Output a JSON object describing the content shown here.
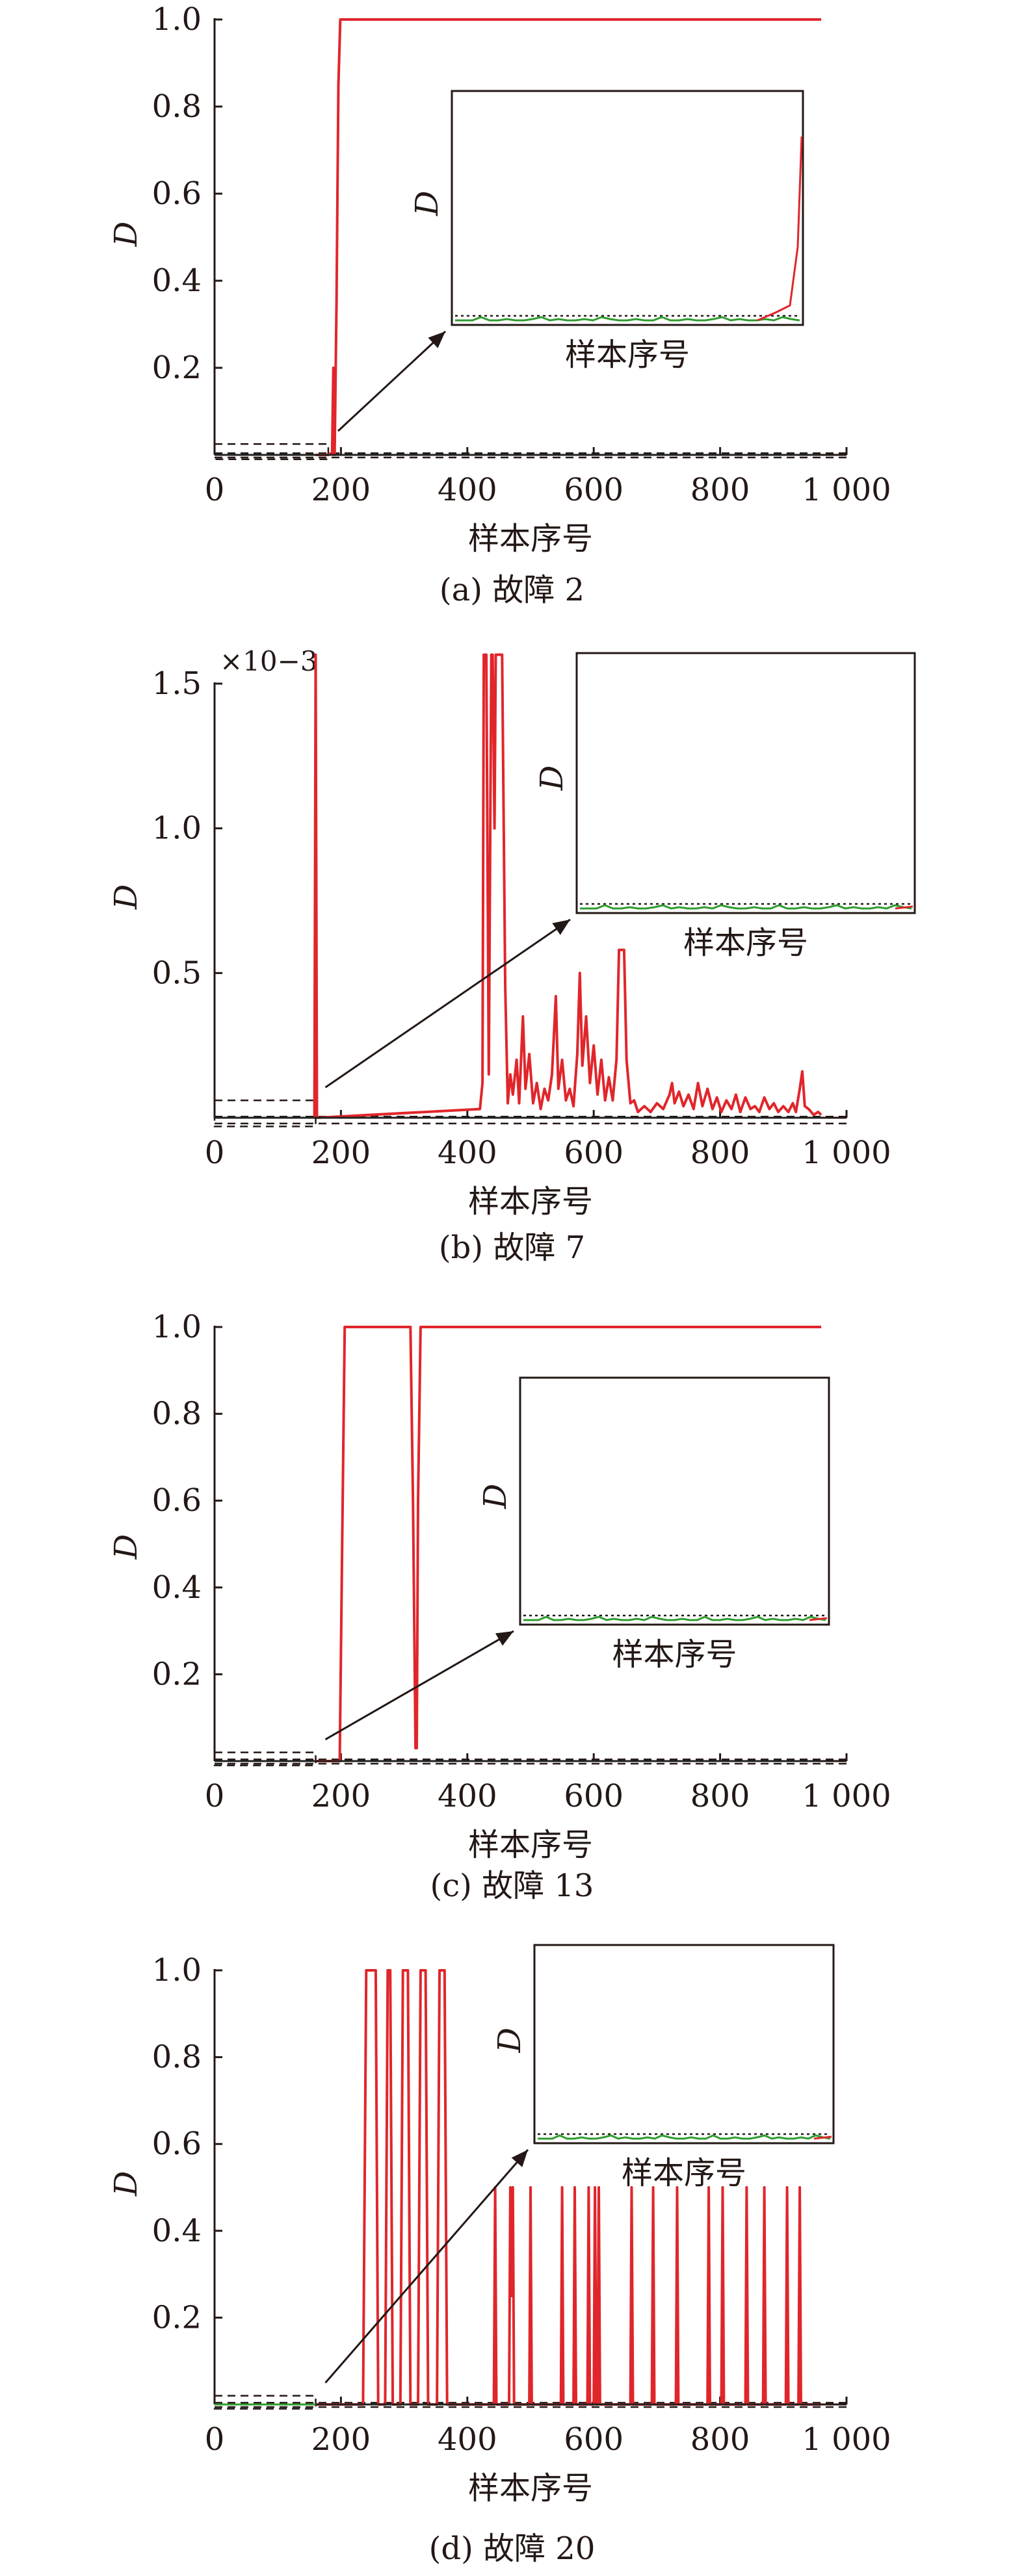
{
  "chart_data": [
    {
      "type": "line",
      "caption": "(a) 故障 2",
      "xlabel": "样本序号",
      "ylabel": "D",
      "xticks": [
        "0",
        "200",
        "400",
        "600",
        "800",
        "1 000"
      ],
      "yticks": [
        "0.2",
        "0.4",
        "0.6",
        "0.8",
        "1.0"
      ],
      "xlim": [
        0,
        1000
      ],
      "ylim": [
        0,
        1.0
      ],
      "exponent_label": "",
      "zoom_box": {
        "x": [
          0,
          180
        ],
        "y": [
          -0.01,
          0.025
        ]
      },
      "inset": {
        "xlabel": "样本序号",
        "ylabel": "D"
      },
      "series": [
        {
          "color": "#e0262b",
          "points": [
            [
              160,
              0
            ],
            [
              170,
              0
            ],
            [
              180,
              0
            ],
            [
              186,
              0.005
            ],
            [
              188,
              0.2
            ],
            [
              189,
              0.02
            ],
            [
              190,
              0
            ],
            [
              193,
              0.35
            ],
            [
              196,
              0.85
            ],
            [
              199,
              1.0
            ],
            [
              260,
              1.0
            ],
            [
              400,
              1.0
            ],
            [
              600,
              1.0
            ],
            [
              800,
              1.0
            ],
            [
              960,
              1.0
            ]
          ]
        },
        {
          "color": "#222222",
          "points": [
            [
              0,
              0
            ],
            [
              160,
              0
            ],
            [
              200,
              0
            ],
            [
              400,
              0
            ],
            [
              600,
              0
            ],
            [
              800,
              0
            ],
            [
              960,
              0
            ]
          ]
        }
      ],
      "thresholds": [
        {
          "value": 0.004
        },
        {
          "value": -0.006
        }
      ]
    },
    {
      "type": "line",
      "caption": "(b) 故障 7",
      "xlabel": "样本序号",
      "ylabel": "D",
      "xticks": [
        "0",
        "200",
        "400",
        "600",
        "800",
        "1 000"
      ],
      "yticks": [
        "0.5",
        "1.0",
        "1.5"
      ],
      "xlim": [
        0,
        1000
      ],
      "ylim": [
        0,
        1.5
      ],
      "exponent_label": "×10−3",
      "zoom_box": {
        "x": [
          0,
          160
        ],
        "y": [
          -0.03,
          0.06
        ]
      },
      "inset": {
        "xlabel": "样本序号",
        "ylabel": "D"
      },
      "series": [
        {
          "color": "#e0262b",
          "points": [
            [
              158,
              0
            ],
            [
              160,
              1.6
            ],
            [
              162,
              0
            ],
            [
              420,
              0.03
            ],
            [
              424,
              0.12
            ],
            [
              426,
              1.6
            ],
            [
              430,
              1.6
            ],
            [
              434,
              0.15
            ],
            [
              438,
              1.6
            ],
            [
              440,
              1.6
            ],
            [
              443,
              1.0
            ],
            [
              445,
              1.6
            ],
            [
              450,
              1.6
            ],
            [
              455,
              1.6
            ],
            [
              460,
              0.45
            ],
            [
              464,
              0.05
            ],
            [
              468,
              0.15
            ],
            [
              472,
              0.08
            ],
            [
              478,
              0.2
            ],
            [
              482,
              0.05
            ],
            [
              488,
              0.35
            ],
            [
              492,
              0.1
            ],
            [
              498,
              0.22
            ],
            [
              504,
              0.05
            ],
            [
              510,
              0.12
            ],
            [
              516,
              0.03
            ],
            [
              522,
              0.1
            ],
            [
              528,
              0.06
            ],
            [
              534,
              0.15
            ],
            [
              540,
              0.42
            ],
            [
              544,
              0.1
            ],
            [
              550,
              0.2
            ],
            [
              556,
              0.06
            ],
            [
              562,
              0.1
            ],
            [
              568,
              0.04
            ],
            [
              574,
              0.22
            ],
            [
              578,
              0.5
            ],
            [
              582,
              0.18
            ],
            [
              588,
              0.35
            ],
            [
              594,
              0.12
            ],
            [
              600,
              0.25
            ],
            [
              606,
              0.08
            ],
            [
              612,
              0.2
            ],
            [
              618,
              0.06
            ],
            [
              624,
              0.14
            ],
            [
              630,
              0.06
            ],
            [
              636,
              0.2
            ],
            [
              640,
              0.58
            ],
            [
              644,
              0.58
            ],
            [
              648,
              0.58
            ],
            [
              652,
              0.2
            ],
            [
              658,
              0.05
            ],
            [
              664,
              0.06
            ],
            [
              670,
              0.02
            ],
            [
              680,
              0.04
            ],
            [
              690,
              0.02
            ],
            [
              700,
              0.05
            ],
            [
              710,
              0.03
            ],
            [
              720,
              0.08
            ],
            [
              724,
              0.12
            ],
            [
              728,
              0.05
            ],
            [
              735,
              0.09
            ],
            [
              742,
              0.04
            ],
            [
              750,
              0.08
            ],
            [
              758,
              0.03
            ],
            [
              765,
              0.12
            ],
            [
              772,
              0.04
            ],
            [
              780,
              0.1
            ],
            [
              788,
              0.03
            ],
            [
              795,
              0.07
            ],
            [
              802,
              0.02
            ],
            [
              810,
              0.06
            ],
            [
              818,
              0.03
            ],
            [
              825,
              0.08
            ],
            [
              832,
              0.02
            ],
            [
              840,
              0.07
            ],
            [
              848,
              0.03
            ],
            [
              855,
              0.04
            ],
            [
              862,
              0.02
            ],
            [
              870,
              0.07
            ],
            [
              878,
              0.03
            ],
            [
              885,
              0.05
            ],
            [
              892,
              0.02
            ],
            [
              900,
              0.04
            ],
            [
              908,
              0.02
            ],
            [
              915,
              0.05
            ],
            [
              920,
              0.02
            ],
            [
              926,
              0.1
            ],
            [
              930,
              0.16
            ],
            [
              934,
              0.04
            ],
            [
              940,
              0.03
            ],
            [
              948,
              0.01
            ],
            [
              955,
              0.02
            ],
            [
              960,
              0.01
            ]
          ]
        },
        {
          "color": "#222222",
          "points": [
            [
              0,
              0
            ],
            [
              200,
              0
            ],
            [
              400,
              0
            ],
            [
              600,
              0
            ],
            [
              800,
              0
            ],
            [
              960,
              0
            ]
          ]
        }
      ],
      "thresholds": [
        {
          "value": 0.004
        },
        {
          "value": -0.02
        }
      ]
    },
    {
      "type": "line",
      "caption": "(c) 故障 13",
      "xlabel": "样本序号",
      "ylabel": "D",
      "xticks": [
        "0",
        "200",
        "400",
        "600",
        "800",
        "1 000"
      ],
      "yticks": [
        "0.2",
        "0.4",
        "0.6",
        "0.8",
        "1.0"
      ],
      "xlim": [
        0,
        1000
      ],
      "ylim": [
        0,
        1.0
      ],
      "exponent_label": "",
      "zoom_box": {
        "x": [
          0,
          160
        ],
        "y": [
          -0.01,
          0.02
        ]
      },
      "inset": {
        "xlabel": "样本序号",
        "ylabel": "D"
      },
      "series": [
        {
          "color": "#e0262b",
          "points": [
            [
              160,
              0
            ],
            [
              190,
              0
            ],
            [
              198,
              0
            ],
            [
              202,
              0.5
            ],
            [
              206,
              1.0
            ],
            [
              260,
              1.0
            ],
            [
              310,
              1.0
            ],
            [
              314,
              0.6
            ],
            [
              318,
              0.03
            ],
            [
              320,
              0.03
            ],
            [
              322,
              0.6
            ],
            [
              326,
              1.0
            ],
            [
              400,
              1.0
            ],
            [
              600,
              1.0
            ],
            [
              800,
              1.0
            ],
            [
              960,
              1.0
            ]
          ]
        },
        {
          "color": "#222222",
          "points": [
            [
              0,
              0
            ],
            [
              200,
              0
            ],
            [
              400,
              0
            ],
            [
              600,
              0
            ],
            [
              800,
              0
            ],
            [
              960,
              0
            ]
          ]
        }
      ],
      "thresholds": [
        {
          "value": 0.004
        },
        {
          "value": -0.006
        }
      ]
    },
    {
      "type": "line",
      "caption": "(d) 故障 20",
      "xlabel": "样本序号",
      "ylabel": "D",
      "xticks": [
        "0",
        "200",
        "400",
        "600",
        "800",
        "1 000"
      ],
      "yticks": [
        "0.2",
        "0.4",
        "0.6",
        "0.8",
        "1.0"
      ],
      "xlim": [
        0,
        1000
      ],
      "ylim": [
        0,
        1.0
      ],
      "exponent_label": "",
      "zoom_box": {
        "x": [
          0,
          160
        ],
        "y": [
          -0.01,
          0.02
        ]
      },
      "inset": {
        "xlabel": "样本序号",
        "ylabel": "D"
      },
      "series": [
        {
          "color": "#e0262b",
          "points": [
            [
              160,
              0
            ],
            [
              235,
              0
            ],
            [
              240,
              1.0
            ],
            [
              255,
              1.0
            ],
            [
              259,
              0
            ],
            [
              270,
              0
            ],
            [
              274,
              1.0
            ],
            [
              278,
              1.0
            ],
            [
              282,
              0
            ],
            [
              294,
              0
            ],
            [
              298,
              1.0
            ],
            [
              306,
              1.0
            ],
            [
              310,
              0
            ],
            [
              322,
              0
            ],
            [
              326,
              1.0
            ],
            [
              334,
              1.0
            ],
            [
              338,
              0
            ],
            [
              352,
              0
            ],
            [
              356,
              1.0
            ],
            [
              364,
              1.0
            ],
            [
              368,
              0
            ],
            [
              442,
              0
            ],
            [
              444,
              0.5
            ],
            [
              446,
              0
            ],
            [
              466,
              0
            ],
            [
              468,
              0.5
            ],
            [
              470,
              0.25
            ],
            [
              472,
              0.5
            ],
            [
              474,
              0
            ],
            [
              498,
              0
            ],
            [
              500,
              0.5
            ],
            [
              502,
              0
            ],
            [
              548,
              0
            ],
            [
              550,
              0.5
            ],
            [
              552,
              0
            ],
            [
              568,
              0
            ],
            [
              570,
              0.5
            ],
            [
              572,
              0
            ],
            [
              590,
              0
            ],
            [
              592,
              0.5
            ],
            [
              594,
              0
            ],
            [
              600,
              0
            ],
            [
              602,
              0.5
            ],
            [
              604,
              0
            ],
            [
              606,
              0
            ],
            [
              608,
              0.5
            ],
            [
              610,
              0
            ],
            [
              658,
              0
            ],
            [
              660,
              0.5
            ],
            [
              662,
              0
            ],
            [
              692,
              0
            ],
            [
              694,
              0.5
            ],
            [
              696,
              0
            ],
            [
              730,
              0
            ],
            [
              732,
              0.5
            ],
            [
              734,
              0
            ],
            [
              780,
              0
            ],
            [
              782,
              0.5
            ],
            [
              784,
              0
            ],
            [
              802,
              0
            ],
            [
              804,
              0.5
            ],
            [
              806,
              0
            ],
            [
              840,
              0
            ],
            [
              842,
              0.5
            ],
            [
              844,
              0
            ],
            [
              868,
              0
            ],
            [
              870,
              0.5
            ],
            [
              872,
              0
            ],
            [
              904,
              0
            ],
            [
              906,
              0.5
            ],
            [
              908,
              0
            ],
            [
              924,
              0
            ],
            [
              926,
              0.5
            ],
            [
              928,
              0
            ],
            [
              940,
              0
            ],
            [
              960,
              0
            ]
          ]
        },
        {
          "color": "#222222",
          "points": [
            [
              0,
              0
            ],
            [
              200,
              0
            ],
            [
              400,
              0
            ],
            [
              600,
              0
            ],
            [
              800,
              0
            ],
            [
              960,
              0
            ]
          ]
        },
        {
          "color": "#2e9c2e",
          "points": [
            [
              0,
              0
            ],
            [
              40,
              0
            ],
            [
              80,
              0
            ],
            [
              120,
              0
            ],
            [
              160,
              0
            ]
          ]
        }
      ],
      "thresholds": [
        {
          "value": 0.004
        },
        {
          "value": -0.006
        }
      ]
    }
  ]
}
